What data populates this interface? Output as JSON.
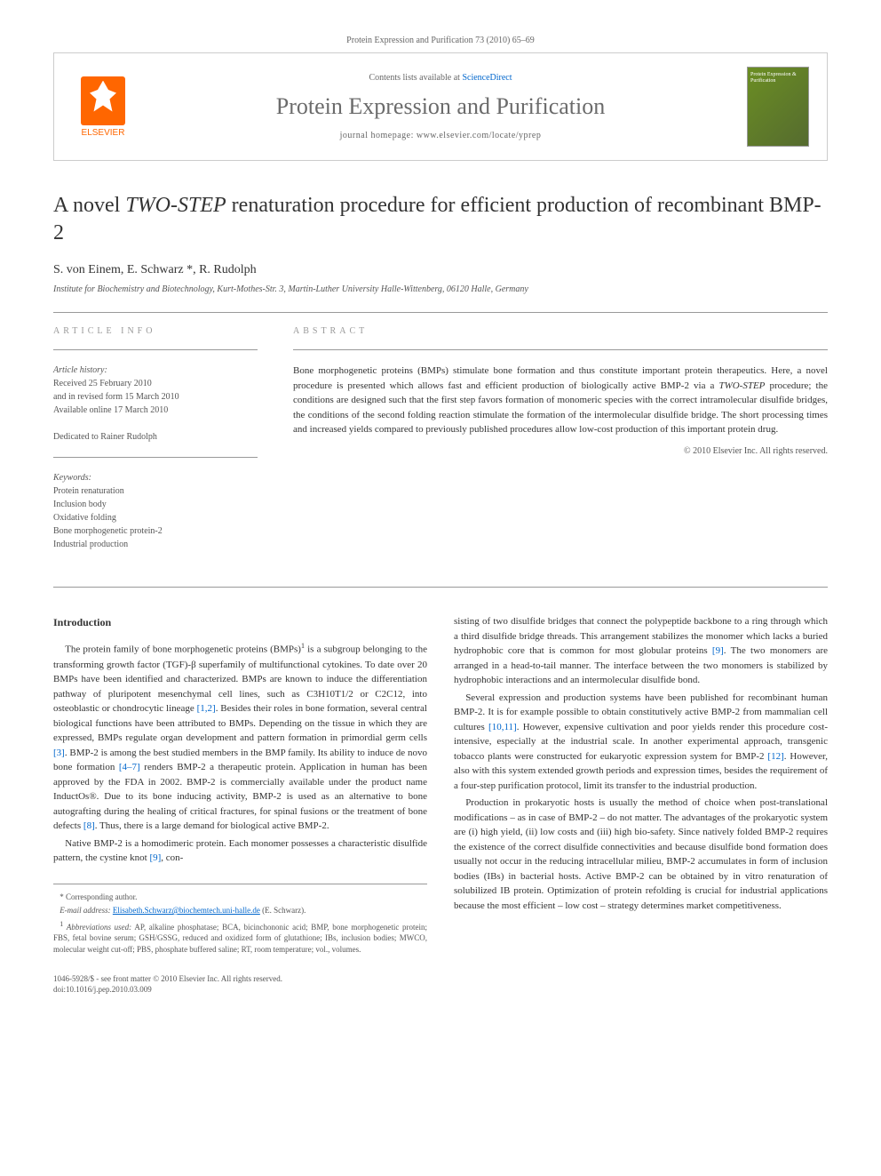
{
  "header": {
    "citation": "Protein Expression and Purification 73 (2010) 65–69"
  },
  "banner": {
    "contents_prefix": "Contents lists available at ",
    "contents_link": "ScienceDirect",
    "journal_name": "Protein Expression and Purification",
    "homepage_label": "journal homepage: www.elsevier.com/locate/yprep",
    "publisher": "ELSEVIER",
    "cover_text": "Protein Expression & Purification"
  },
  "article": {
    "title_pre": "A novel ",
    "title_em": "TWO-STEP",
    "title_post": " renaturation procedure for efficient production of recombinant BMP-2",
    "authors": "S. von Einem, E. Schwarz *, R. Rudolph",
    "affiliation": "Institute for Biochemistry and Biotechnology, Kurt-Mothes-Str. 3, Martin-Luther University Halle-Wittenberg, 06120 Halle, Germany"
  },
  "info": {
    "heading": "ARTICLE INFO",
    "history_label": "Article history:",
    "history_1": "Received 25 February 2010",
    "history_2": "and in revised form 15 March 2010",
    "history_3": "Available online 17 March 2010",
    "dedication": "Dedicated to Rainer Rudolph",
    "keywords_label": "Keywords:",
    "kw1": "Protein renaturation",
    "kw2": "Inclusion body",
    "kw3": "Oxidative folding",
    "kw4": "Bone morphogenetic protein-2",
    "kw5": "Industrial production"
  },
  "abstract": {
    "heading": "ABSTRACT",
    "text_1": "Bone morphogenetic proteins (BMPs) stimulate bone formation and thus constitute important protein therapeutics. Here, a novel procedure is presented which allows fast and efficient production of biologically active BMP-2 via a ",
    "text_em": "TWO-STEP",
    "text_2": " procedure; the conditions are designed such that the first step favors formation of monomeric species with the correct intramolecular disulfide bridges, the conditions of the second folding reaction stimulate the formation of the intermolecular disulfide bridge. The short processing times and increased yields compared to previously published procedures allow low-cost production of this important protein drug.",
    "copyright": "© 2010 Elsevier Inc. All rights reserved."
  },
  "body": {
    "intro_heading": "Introduction",
    "p1_a": "The protein family of bone morphogenetic proteins (BMPs)",
    "p1_b": " is a subgroup belonging to the transforming growth factor (TGF)-β superfamily of multifunctional cytokines. To date over 20 BMPs have been identified and characterized. BMPs are known to induce the differentiation pathway of pluripotent mesenchymal cell lines, such as C3H10T1/2 or C2C12, into osteoblastic or chondrocytic lineage ",
    "p1_ref1": "[1,2]",
    "p1_c": ". Besides their roles in bone formation, several central biological functions have been attributed to BMPs. Depending on the tissue in which they are expressed, BMPs regulate organ development and pattern formation in primordial germ cells ",
    "p1_ref2": "[3]",
    "p1_d": ". BMP-2 is among the best studied members in the BMP family. Its ability to induce de novo bone formation ",
    "p1_ref3": "[4–7]",
    "p1_e": " renders BMP-2 a therapeutic protein. Application in human has been approved by the FDA in 2002. BMP-2 is commercially available under the product name InductOs®. Due to its bone inducing activity, BMP-2 is used as an alternative to bone autografting during the healing of critical fractures, for spinal fusions or the treatment of bone defects ",
    "p1_ref4": "[8]",
    "p1_f": ". Thus, there is a large demand for biological active BMP-2.",
    "p2_a": "Native BMP-2 is a homodimeric protein. Each monomer possesses a characteristic disulfide pattern, the cystine knot ",
    "p2_ref1": "[9]",
    "p2_b": ", con",
    "p3_a": "sisting of two disulfide bridges that connect the polypeptide backbone to a ring through which a third disulfide bridge threads. This arrangement stabilizes the monomer which lacks a buried hydrophobic core that is common for most globular proteins ",
    "p3_ref1": "[9]",
    "p3_b": ". The two monomers are arranged in a head-to-tail manner. The interface between the two monomers is stabilized by hydrophobic interactions and an intermolecular disulfide bond.",
    "p4_a": "Several expression and production systems have been published for recombinant human BMP-2. It is for example possible to obtain constitutively active BMP-2 from mammalian cell cultures ",
    "p4_ref1": "[10,11]",
    "p4_b": ". However, expensive cultivation and poor yields render this procedure cost-intensive, especially at the industrial scale. In another experimental approach, transgenic tobacco plants were constructed for eukaryotic expression system for BMP-2 ",
    "p4_ref2": "[12]",
    "p4_c": ". However, also with this system extended growth periods and expression times, besides the requirement of a four-step purification protocol, limit its transfer to the industrial production.",
    "p5": "Production in prokaryotic hosts is usually the method of choice when post-translational modifications – as in case of BMP-2 – do not matter. The advantages of the prokaryotic system are (i) high yield, (ii) low costs and (iii) high bio-safety. Since natively folded BMP-2 requires the existence of the correct disulfide connectivities and because disulfide bond formation does usually not occur in the reducing intracellular milieu, BMP-2 accumulates in form of inclusion bodies (IBs) in bacterial hosts. Active BMP-2 can be obtained by in vitro renaturation of solubilized IB protein. Optimization of protein refolding is crucial for industrial applications because the most efficient – low cost – strategy determines market competitiveness."
  },
  "footnotes": {
    "corresponding": "* Corresponding author.",
    "email_label": "E-mail address: ",
    "email": "Elisabeth.Schwarz@biochemtech.uni-halle.de",
    "email_author": " (E. Schwarz).",
    "abbrev_label": "Abbreviations used:",
    "abbrev": " AP, alkaline phosphatase; BCA, bicinchononic acid; BMP, bone morphogenetic protein; FBS, fetal bovine serum; GSH/GSSG, reduced and oxidized form of glutathione; IBs, inclusion bodies; MWCO, molecular weight cut-off; PBS, phosphate buffered saline; RT, room temperature; vol., volumes."
  },
  "footer": {
    "line1": "1046-5928/$ - see front matter © 2010 Elsevier Inc. All rights reserved.",
    "line2": "doi:10.1016/j.pep.2010.03.009"
  }
}
